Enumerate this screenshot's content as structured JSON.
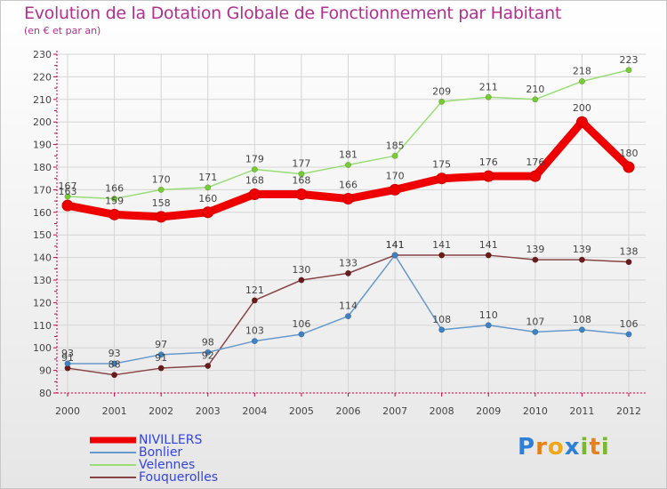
{
  "title": "Evolution de la Dotation Globale de Fonctionnement par Habitant",
  "subtitle": "(en € et par an)",
  "logo": {
    "letters": [
      "P",
      "r",
      "o",
      "x",
      "i",
      "t",
      "i"
    ]
  },
  "colors": {
    "title": "#b03090",
    "axis": "#cc0044",
    "grid": "#d5d5d5",
    "label": "#444444",
    "legend_text": "#3344dd"
  },
  "chart_data": {
    "type": "line",
    "title": "Evolution de la Dotation Globale de Fonctionnement par Habitant",
    "subtitle": "(en € et par an)",
    "xlabel": "",
    "ylabel": "",
    "x": [
      "2000",
      "2001",
      "2002",
      "2003",
      "2004",
      "2005",
      "2006",
      "2007",
      "2008",
      "2009",
      "2010",
      "2011",
      "2012"
    ],
    "ylim": [
      80,
      230
    ],
    "yticks": [
      80,
      90,
      100,
      110,
      120,
      130,
      140,
      150,
      160,
      170,
      180,
      190,
      200,
      210,
      220,
      230
    ],
    "grid": true,
    "legend_position": "bottom-left",
    "series": [
      {
        "name": "NIVILLERS",
        "color": "#ee0000",
        "dot": "#ee0000",
        "width": "thick",
        "values": [
          163,
          159,
          158,
          160,
          168,
          168,
          166,
          170,
          175,
          176,
          176,
          200,
          180
        ]
      },
      {
        "name": "Bonlier",
        "color": "#6699cc",
        "dot": "#3d82c4",
        "width": "thin",
        "values": [
          93,
          93,
          97,
          98,
          103,
          106,
          114,
          141,
          108,
          110,
          107,
          108,
          106
        ]
      },
      {
        "name": "Velennes",
        "color": "#99dd77",
        "dot": "#77cc33",
        "width": "thin",
        "values": [
          167,
          166,
          170,
          171,
          179,
          177,
          181,
          185,
          209,
          211,
          210,
          218,
          223
        ]
      },
      {
        "name": "Fouquerolles",
        "color": "#884444",
        "dot": "#6b1a1a",
        "width": "thin",
        "values": [
          91,
          88,
          91,
          92,
          121,
          130,
          133,
          141,
          141,
          141,
          139,
          139,
          138
        ]
      }
    ]
  }
}
